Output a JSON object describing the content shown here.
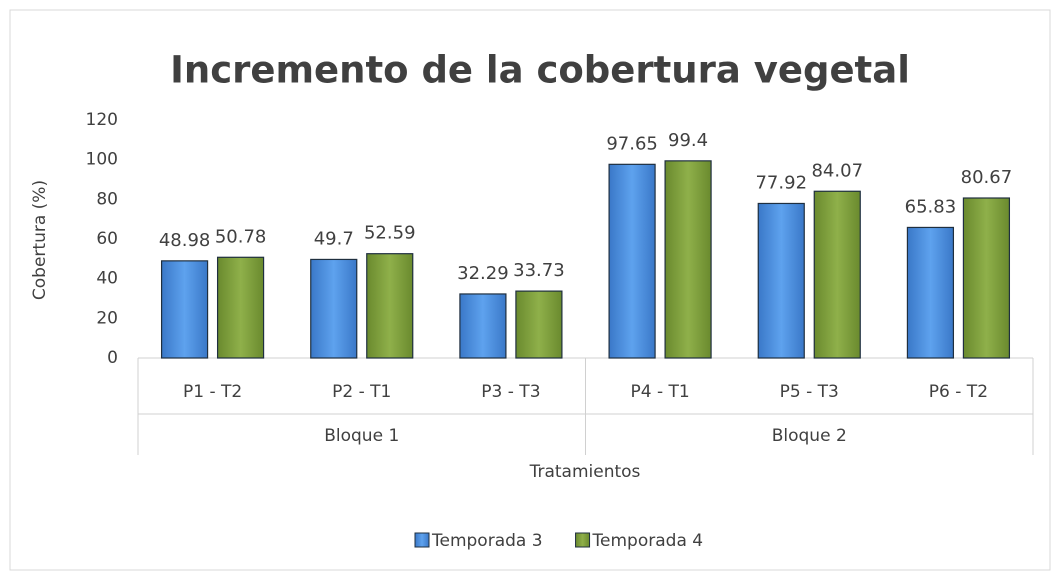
{
  "chart_data": {
    "type": "bar",
    "title": "Incremento de la cobertura vegetal",
    "x_label": "Tratamientos",
    "y_label": "Cobertura (%)",
    "groups": [
      {
        "label": "Bloque 1",
        "categories": [
          "P1 - T2",
          "P2 - T1",
          "P3 - T3"
        ]
      },
      {
        "label": "Bloque 2",
        "categories": [
          "P4 - T1",
          "P5 - T3",
          "P6 - T2"
        ]
      }
    ],
    "series": [
      {
        "name": "Temporada 3",
        "color": "#4a8fe0",
        "values": [
          48.98,
          49.7,
          32.29,
          97.65,
          77.92,
          65.83
        ]
      },
      {
        "name": "Temporada 4",
        "color": "#7d9c3c",
        "values": [
          50.78,
          52.59,
          33.73,
          99.4,
          84.07,
          80.67
        ]
      }
    ],
    "ylim": [
      0,
      120
    ],
    "yticks": [
      0,
      20,
      40,
      60,
      80,
      100,
      120
    ],
    "grid": false,
    "legend": "bottom"
  }
}
